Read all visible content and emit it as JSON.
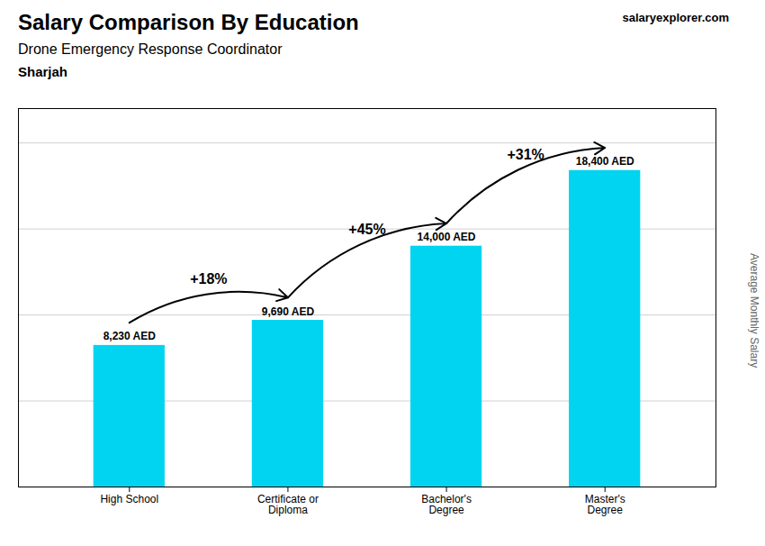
{
  "chart_data": {
    "type": "bar",
    "title": "Salary Comparison By Education",
    "subtitle": "Drone Emergency Response Coordinator",
    "city": "Sharjah",
    "watermark": "salaryexplorer.com",
    "ylabel": "Average Monthly Salary",
    "categories": [
      "High School",
      "Certificate or\nDiploma",
      "Bachelor's\nDegree",
      "Master's\nDegree"
    ],
    "values": [
      8230,
      9690,
      14000,
      18400
    ],
    "value_labels": [
      "8,230 AED",
      "9,690 AED",
      "14,000 AED",
      "18,400 AED"
    ],
    "data_labels": true,
    "annotations": [
      "+18%",
      "+45%",
      "+31%"
    ],
    "color": "#00d4f0",
    "ylim": [
      0,
      22000
    ],
    "yticks": [
      5000,
      10000,
      15000,
      20000
    ],
    "grid": true,
    "tick_labels": "x"
  }
}
